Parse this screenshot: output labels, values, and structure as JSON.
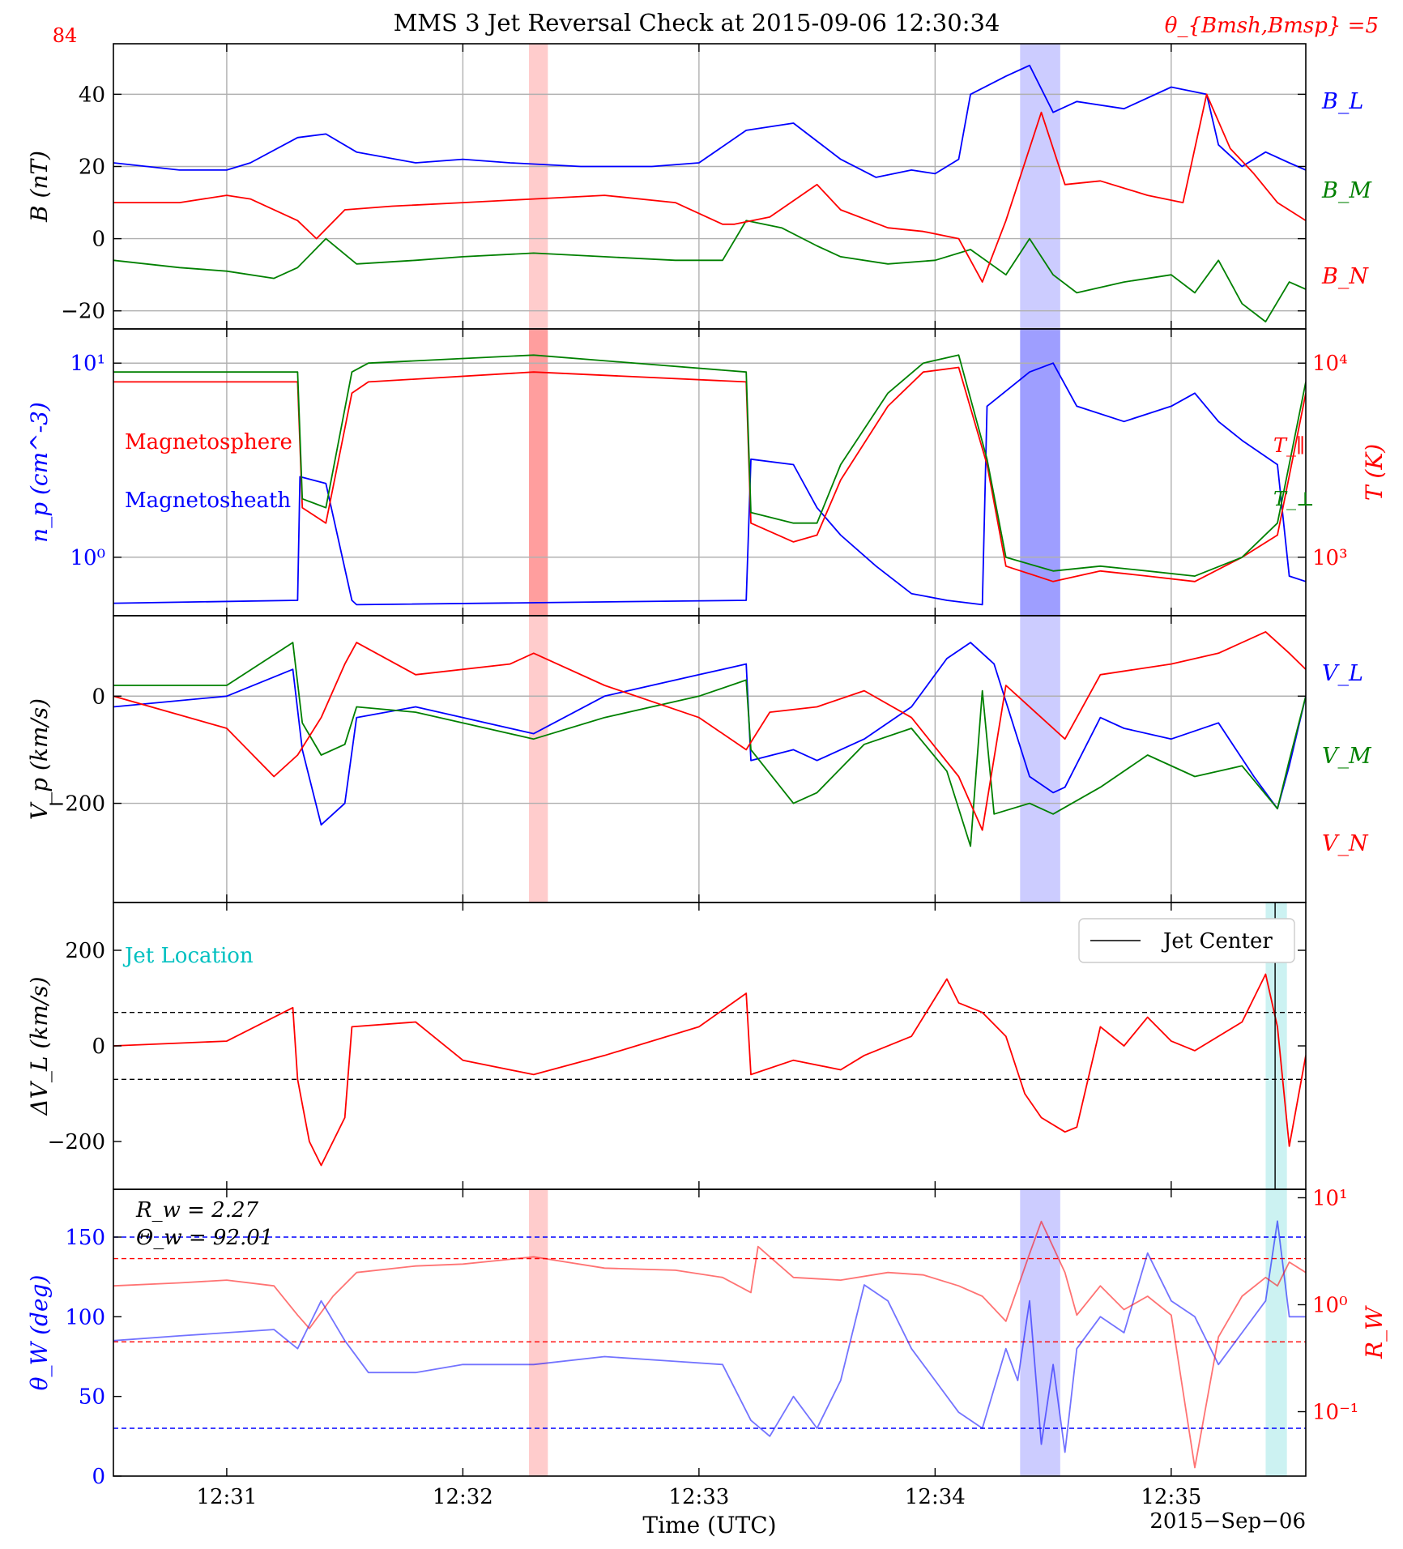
{
  "figure": {
    "title": "MMS 3 Jet Reversal Check at 2015-09-06 12:30:34",
    "left_corner_label": "84",
    "right_corner_label": "θ_{Bmsh,Bmsp} =5",
    "xlabel": "Time (UTC)",
    "date_label": "2015−Sep−06",
    "x_tick_labels": [
      "12:31",
      "12:32",
      "12:33",
      "12:34",
      "12:35"
    ]
  },
  "colors": {
    "blue": "#0000ff",
    "red": "#ff0000",
    "green": "#008000",
    "cyan": "#00c0c0",
    "grid": "#b0b0b0"
  },
  "chart_data": [
    {
      "panel": "magnetic field",
      "type": "line",
      "ylabel": "B (nT)",
      "yticks": [
        -20,
        0,
        20,
        40
      ],
      "ylim": [
        -25,
        54
      ],
      "x_unit": "minutes after 12:30",
      "xlim": [
        0.52,
        5.57
      ],
      "grid": true,
      "shaded_intervals": [
        {
          "start": 2.28,
          "end": 2.36,
          "color": "red"
        },
        {
          "start": 4.36,
          "end": 4.53,
          "color": "blue"
        }
      ],
      "series": [
        {
          "name": "B_L",
          "color": "blue",
          "x": [
            0.52,
            0.8,
            1.0,
            1.1,
            1.3,
            1.42,
            1.55,
            1.8,
            2.0,
            2.2,
            2.5,
            2.8,
            3.0,
            3.2,
            3.4,
            3.6,
            3.75,
            3.9,
            4.0,
            4.1,
            4.15,
            4.3,
            4.4,
            4.5,
            4.6,
            4.8,
            5.0,
            5.15,
            5.2,
            5.3,
            5.4,
            5.5,
            5.57
          ],
          "y": [
            21,
            19,
            19,
            21,
            28,
            29,
            24,
            21,
            22,
            21,
            20,
            20,
            21,
            30,
            32,
            22,
            17,
            19,
            18,
            22,
            40,
            45,
            48,
            35,
            38,
            36,
            42,
            40,
            26,
            20,
            24,
            21,
            19
          ]
        },
        {
          "name": "B_M",
          "color": "green",
          "x": [
            0.52,
            0.8,
            1.0,
            1.2,
            1.3,
            1.42,
            1.55,
            1.8,
            2.0,
            2.3,
            2.6,
            2.9,
            3.1,
            3.2,
            3.35,
            3.5,
            3.6,
            3.8,
            4.0,
            4.15,
            4.3,
            4.4,
            4.5,
            4.6,
            4.8,
            5.0,
            5.1,
            5.2,
            5.3,
            5.4,
            5.5,
            5.57
          ],
          "y": [
            -6,
            -8,
            -9,
            -11,
            -8,
            0,
            -7,
            -6,
            -5,
            -4,
            -5,
            -6,
            -6,
            5,
            3,
            -2,
            -5,
            -7,
            -6,
            -3,
            -10,
            0,
            -10,
            -15,
            -12,
            -10,
            -15,
            -6,
            -18,
            -23,
            -12,
            -14
          ]
        },
        {
          "name": "B_N",
          "color": "red",
          "x": [
            0.52,
            0.8,
            1.0,
            1.1,
            1.3,
            1.38,
            1.5,
            1.7,
            2.0,
            2.3,
            2.6,
            2.9,
            3.1,
            3.15,
            3.3,
            3.5,
            3.6,
            3.8,
            3.95,
            4.1,
            4.2,
            4.3,
            4.45,
            4.55,
            4.7,
            4.9,
            5.05,
            5.15,
            5.25,
            5.35,
            5.45,
            5.57
          ],
          "y": [
            10,
            10,
            12,
            11,
            5,
            0,
            8,
            9,
            10,
            11,
            12,
            10,
            4,
            4,
            6,
            15,
            8,
            3,
            2,
            0,
            -12,
            5,
            35,
            15,
            16,
            12,
            10,
            40,
            25,
            18,
            10,
            5
          ]
        }
      ]
    },
    {
      "panel": "density and temperature",
      "type": "line",
      "ylabel_left": "n_p (cm^-3)",
      "ylabel_right": "T (K)",
      "left_scale": "log",
      "right_scale": "log",
      "left_ticks": [
        "10^0",
        "10^1"
      ],
      "right_ticks": [
        "10^3",
        "10^4"
      ],
      "ylim_left": [
        0.5,
        15
      ],
      "ylim_right": [
        500,
        15000
      ],
      "x_unit": "minutes after 12:30",
      "xlim": [
        0.52,
        5.57
      ],
      "grid": true,
      "annotations": [
        "Magnetosphere",
        "Magnetosheath",
        "T_∥",
        "T_⊥"
      ],
      "shaded_intervals": [
        {
          "start": 2.28,
          "end": 2.36,
          "color": "red"
        },
        {
          "start": 4.36,
          "end": 4.53,
          "color": "blue"
        }
      ],
      "series": [
        {
          "name": "n_p",
          "axis": "left",
          "color": "blue",
          "x": [
            0.52,
            1.3,
            1.31,
            1.42,
            1.53,
            1.55,
            3.2,
            3.22,
            3.4,
            3.5,
            3.6,
            3.75,
            3.9,
            4.05,
            4.2,
            4.22,
            4.4,
            4.5,
            4.6,
            4.8,
            5.0,
            5.1,
            5.2,
            5.3,
            5.45,
            5.5,
            5.57
          ],
          "y": [
            0.58,
            0.6,
            2.6,
            2.4,
            0.6,
            0.57,
            0.6,
            3.2,
            3.0,
            1.8,
            1.3,
            0.9,
            0.65,
            0.6,
            0.57,
            6,
            9,
            10,
            6,
            5,
            6,
            7,
            5,
            4,
            3,
            0.8,
            0.75
          ]
        },
        {
          "name": "T_∥",
          "axis": "right",
          "color": "red",
          "x": [
            0.52,
            1.3,
            1.32,
            1.42,
            1.53,
            1.6,
            2.3,
            3.2,
            3.22,
            3.4,
            3.5,
            3.6,
            3.8,
            3.95,
            4.1,
            4.22,
            4.3,
            4.5,
            4.7,
            4.9,
            5.1,
            5.3,
            5.45,
            5.57
          ],
          "y": [
            8000,
            8000,
            1800,
            1500,
            7000,
            8000,
            9000,
            8000,
            1500,
            1200,
            1300,
            2500,
            6000,
            9000,
            9500,
            3000,
            900,
            750,
            850,
            800,
            750,
            1000,
            1300,
            7000
          ]
        },
        {
          "name": "T_⊥",
          "axis": "right",
          "color": "green",
          "x": [
            0.52,
            1.3,
            1.32,
            1.42,
            1.53,
            1.6,
            2.3,
            3.2,
            3.22,
            3.4,
            3.5,
            3.6,
            3.8,
            3.95,
            4.1,
            4.22,
            4.3,
            4.5,
            4.7,
            4.9,
            5.1,
            5.3,
            5.45,
            5.57
          ],
          "y": [
            9000,
            9000,
            2000,
            1800,
            9000,
            10000,
            11000,
            9000,
            1700,
            1500,
            1500,
            3000,
            7000,
            10000,
            11000,
            3200,
            1000,
            850,
            900,
            850,
            800,
            1000,
            1500,
            8000
          ]
        }
      ]
    },
    {
      "panel": "proton velocity",
      "type": "line",
      "ylabel": "V_p (km/s)",
      "yticks": [
        -200,
        0
      ],
      "ylim": [
        -385,
        150
      ],
      "x_unit": "minutes after 12:30",
      "xlim": [
        0.52,
        5.57
      ],
      "grid": true,
      "shaded_intervals": [
        {
          "start": 2.28,
          "end": 2.36,
          "color": "red"
        },
        {
          "start": 4.36,
          "end": 4.53,
          "color": "blue"
        }
      ],
      "series": [
        {
          "name": "V_L",
          "color": "blue",
          "x": [
            0.52,
            1.0,
            1.28,
            1.32,
            1.4,
            1.5,
            1.55,
            1.8,
            2.3,
            2.6,
            3.0,
            3.2,
            3.22,
            3.4,
            3.5,
            3.7,
            3.9,
            4.05,
            4.15,
            4.25,
            4.4,
            4.5,
            4.55,
            4.7,
            4.8,
            5.0,
            5.2,
            5.35,
            5.45,
            5.5,
            5.57
          ],
          "y": [
            -20,
            0,
            50,
            -100,
            -240,
            -200,
            -40,
            -20,
            -70,
            0,
            40,
            60,
            -120,
            -100,
            -120,
            -80,
            -20,
            70,
            100,
            60,
            -150,
            -180,
            -170,
            -40,
            -60,
            -80,
            -50,
            -150,
            -210,
            -130,
            0
          ]
        },
        {
          "name": "V_M",
          "color": "green",
          "x": [
            0.52,
            1.0,
            1.28,
            1.32,
            1.4,
            1.5,
            1.55,
            1.8,
            2.3,
            2.6,
            3.0,
            3.2,
            3.22,
            3.4,
            3.5,
            3.7,
            3.9,
            4.05,
            4.15,
            4.2,
            4.25,
            4.4,
            4.5,
            4.7,
            4.9,
            5.1,
            5.3,
            5.45,
            5.5,
            5.57
          ],
          "y": [
            20,
            20,
            100,
            -50,
            -110,
            -90,
            -20,
            -30,
            -80,
            -40,
            0,
            30,
            -100,
            -200,
            -180,
            -90,
            -60,
            -140,
            -280,
            10,
            -220,
            -200,
            -220,
            -170,
            -110,
            -150,
            -130,
            -210,
            -120,
            0
          ]
        },
        {
          "name": "V_N",
          "color": "red",
          "x": [
            0.52,
            1.0,
            1.2,
            1.3,
            1.4,
            1.5,
            1.55,
            1.8,
            2.2,
            2.3,
            2.6,
            3.0,
            3.2,
            3.3,
            3.5,
            3.7,
            3.9,
            4.1,
            4.2,
            4.3,
            4.45,
            4.55,
            4.7,
            5.0,
            5.2,
            5.4,
            5.5,
            5.57
          ],
          "y": [
            0,
            -60,
            -150,
            -110,
            -40,
            60,
            100,
            40,
            60,
            80,
            20,
            -40,
            -100,
            -30,
            -20,
            10,
            -40,
            -150,
            -250,
            20,
            -40,
            -80,
            40,
            60,
            80,
            120,
            80,
            50
          ]
        }
      ]
    },
    {
      "panel": "velocity difference",
      "type": "line",
      "ylabel": "ΔV_L (km/s)",
      "yticks": [
        -200,
        0,
        200
      ],
      "ylim": [
        -300,
        300
      ],
      "x_unit": "minutes after 12:30",
      "xlim": [
        0.52,
        5.57
      ],
      "annotation": "Jet Location",
      "legend": {
        "label": "Jet Center",
        "placement": "top-right"
      },
      "threshold_lines": [
        70,
        -70
      ],
      "jet_center": 5.44,
      "shaded_intervals": [
        {
          "start": 5.4,
          "end": 5.49,
          "color": "cyan"
        }
      ],
      "series": [
        {
          "name": "ΔV_L",
          "color": "red",
          "x": [
            0.52,
            1.0,
            1.28,
            1.3,
            1.35,
            1.4,
            1.5,
            1.53,
            1.8,
            2.0,
            2.3,
            2.6,
            3.0,
            3.2,
            3.22,
            3.4,
            3.6,
            3.7,
            3.9,
            4.05,
            4.1,
            4.2,
            4.3,
            4.38,
            4.45,
            4.55,
            4.6,
            4.7,
            4.8,
            4.9,
            5.0,
            5.1,
            5.3,
            5.4,
            5.45,
            5.5,
            5.57
          ],
          "y": [
            0,
            10,
            80,
            -70,
            -200,
            -250,
            -150,
            40,
            50,
            -30,
            -60,
            -20,
            40,
            110,
            -60,
            -30,
            -50,
            -20,
            20,
            140,
            90,
            70,
            20,
            -100,
            -150,
            -180,
            -170,
            40,
            0,
            60,
            10,
            -10,
            50,
            150,
            40,
            -210,
            -20
          ]
        }
      ]
    },
    {
      "panel": "walen test",
      "type": "line",
      "ylabel_left": "θ_W (deg)",
      "ylabel_right": "R_W",
      "left_ticks": [
        0,
        50,
        100,
        150
      ],
      "ylim_left": [
        0,
        180
      ],
      "right_scale": "log",
      "right_ticks": [
        "10^-1",
        "10^0",
        "10^1"
      ],
      "ylim_right": [
        0.025,
        12
      ],
      "x_unit": "minutes after 12:30",
      "xlim": [
        0.52,
        5.57
      ],
      "annotations": [
        "R_w = 2.27",
        "Θ_w = 92.01"
      ],
      "theta_reference_lines": [
        150,
        30
      ],
      "rw_reference_lines": [
        2.7,
        0.45
      ],
      "shaded_intervals": [
        {
          "start": 2.28,
          "end": 2.36,
          "color": "red"
        },
        {
          "start": 4.36,
          "end": 4.53,
          "color": "blue"
        },
        {
          "start": 5.4,
          "end": 5.49,
          "color": "cyan"
        }
      ],
      "series": [
        {
          "name": "θ_W",
          "axis": "left",
          "color": "blue",
          "x": [
            0.52,
            0.8,
            1.0,
            1.2,
            1.3,
            1.4,
            1.5,
            1.6,
            1.8,
            2.0,
            2.3,
            2.6,
            2.9,
            3.1,
            3.22,
            3.3,
            3.4,
            3.5,
            3.6,
            3.7,
            3.8,
            3.9,
            4.0,
            4.1,
            4.2,
            4.3,
            4.35,
            4.4,
            4.45,
            4.5,
            4.55,
            4.6,
            4.7,
            4.8,
            4.9,
            5.0,
            5.1,
            5.2,
            5.3,
            5.4,
            5.45,
            5.5,
            5.57
          ],
          "y": [
            85,
            88,
            90,
            92,
            80,
            110,
            85,
            65,
            65,
            70,
            70,
            75,
            72,
            70,
            35,
            25,
            50,
            30,
            60,
            120,
            110,
            80,
            60,
            40,
            30,
            80,
            60,
            110,
            20,
            70,
            15,
            80,
            100,
            90,
            140,
            110,
            100,
            70,
            90,
            110,
            160,
            100,
            100
          ]
        },
        {
          "name": "R_W",
          "axis": "right",
          "color": "red",
          "x": [
            0.52,
            0.8,
            1.0,
            1.2,
            1.3,
            1.35,
            1.45,
            1.55,
            1.8,
            2.0,
            2.3,
            2.6,
            2.9,
            3.1,
            3.22,
            3.25,
            3.4,
            3.6,
            3.8,
            3.95,
            4.1,
            4.2,
            4.3,
            4.4,
            4.45,
            4.55,
            4.6,
            4.7,
            4.8,
            4.9,
            5.0,
            5.1,
            5.2,
            5.3,
            5.4,
            5.45,
            5.5,
            5.57
          ],
          "y": [
            1.5,
            1.6,
            1.7,
            1.5,
            0.8,
            0.6,
            1.2,
            2.0,
            2.3,
            2.4,
            2.8,
            2.2,
            2.1,
            1.8,
            1.3,
            3.5,
            1.8,
            1.7,
            2.0,
            1.9,
            1.5,
            1.2,
            0.7,
            3.0,
            6.0,
            2.0,
            0.8,
            1.5,
            0.9,
            1.2,
            0.8,
            0.03,
            0.5,
            1.2,
            1.8,
            1.5,
            2.5,
            2.0
          ]
        }
      ]
    }
  ],
  "side_labels": {
    "panel1": [
      "B_L",
      "B_M",
      "B_N"
    ],
    "panel3": [
      "V_L",
      "V_M",
      "V_N"
    ]
  }
}
